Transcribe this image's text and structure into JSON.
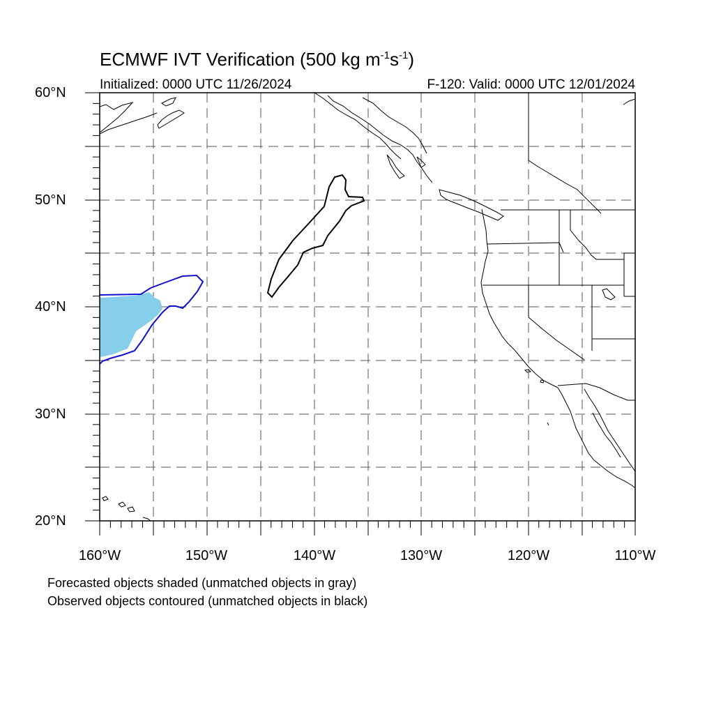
{
  "title": {
    "text_prefix": "ECMWF IVT Verification (500 kg m",
    "sup1": "-1",
    "text_mid": "s",
    "sup2": "-1",
    "text_suffix": ")"
  },
  "subtitle_left": "Initialized: 0000 UTC 11/26/2024",
  "subtitle_right": "F-120: Valid: 0000 UTC 12/01/2024",
  "lat_labels": [
    "60°N",
    "50°N",
    "40°N",
    "30°N",
    "20°N"
  ],
  "lon_labels": [
    "160°W",
    "150°W",
    "140°W",
    "130°W",
    "120°W",
    "110°W"
  ],
  "captions": [
    "Forecasted objects shaded (unmatched objects in gray)",
    "Observed objects contoured (unmatched objects in black)"
  ],
  "map_extent": {
    "lon_min": -160,
    "lon_max": -110,
    "lat_min": 20,
    "lat_max": 60
  },
  "colors": {
    "forecast_matched_fill": "#87ceeb",
    "observed_matched_contour": "#1010d0",
    "observed_unmatched_contour": "#000000",
    "gridline": "#555555"
  },
  "objects": [
    {
      "kind": "forecast",
      "matched": true,
      "center_lon": -157.5,
      "center_lat": 38.5
    },
    {
      "kind": "observed",
      "matched": true,
      "center_lon": -155.0,
      "center_lat": 39.0
    },
    {
      "kind": "observed",
      "matched": false,
      "center_lon": -140.5,
      "center_lat": 46.5
    }
  ]
}
